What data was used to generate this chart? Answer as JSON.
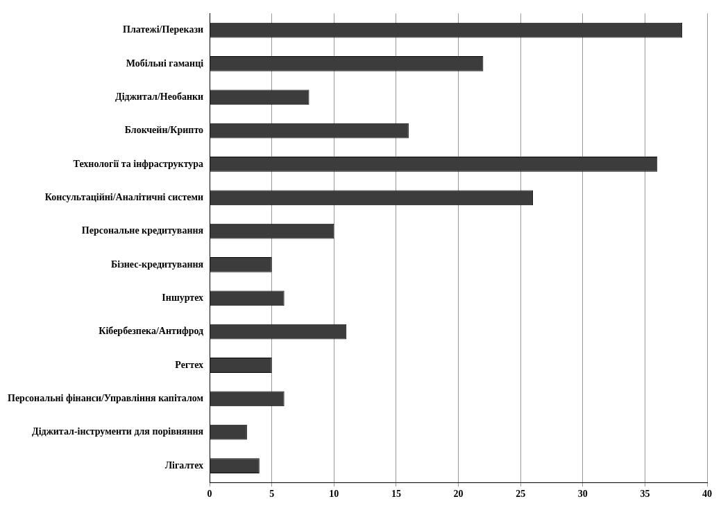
{
  "chart_data": {
    "type": "bar",
    "orientation": "horizontal",
    "categories": [
      "Платежі/Перекази",
      "Мобільні гаманці",
      "Діджитал/Необанки",
      "Блокчейн/Крипто",
      "Технології та інфраструктура",
      "Консультаційні/Аналітичні системи",
      "Персональне кредитування",
      "Бізнес-кредитування",
      "Іншуртех",
      "Кібербезпека/Антифрод",
      "Регтех",
      "Персональні фінанси/Управління капіталом",
      "Діджитал-інструменти для порівняння",
      "Лігалтех"
    ],
    "values": [
      38,
      22,
      8,
      16,
      36,
      26,
      10,
      5,
      6,
      11,
      5,
      6,
      3,
      4
    ],
    "color": "#3c3c3c",
    "xlim": [
      0,
      40
    ],
    "xticks": [
      0,
      5,
      10,
      15,
      20,
      25,
      30,
      35,
      40
    ],
    "grid": "x",
    "legend": false
  }
}
